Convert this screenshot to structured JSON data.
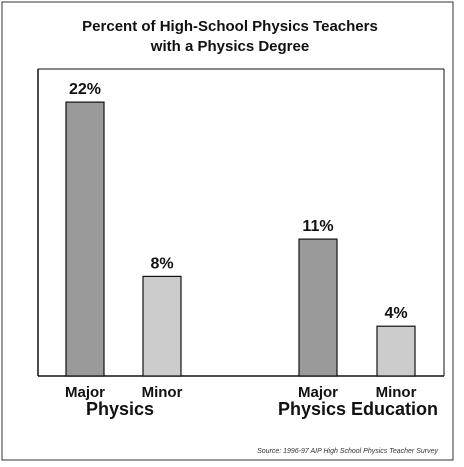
{
  "chart_data": {
    "type": "bar",
    "title_lines": [
      "Percent of High-School Physics Teachers",
      "with a Physics Degree"
    ],
    "ylim": [
      0,
      24
    ],
    "bars": [
      {
        "category": "Major",
        "group": "Physics",
        "value": 22,
        "label": "22%",
        "color": "#9a9a9a"
      },
      {
        "category": "Minor",
        "group": "Physics",
        "value": 8,
        "label": "8%",
        "color": "#cccccc"
      },
      {
        "category": "Major",
        "group": "Physics Education",
        "value": 11,
        "label": "11%",
        "color": "#9a9a9a"
      },
      {
        "category": "Minor",
        "group": "Physics Education",
        "value": 4,
        "label": "4%",
        "color": "#cccccc"
      }
    ],
    "groups": [
      "Physics",
      "Physics Education"
    ],
    "source": "Source: 1996-97 AIP High School Physics Teacher Survey"
  },
  "colors": {
    "major": "#9a9a9a",
    "minor": "#cccccc",
    "axis": "#111111",
    "frame": "#333333"
  }
}
